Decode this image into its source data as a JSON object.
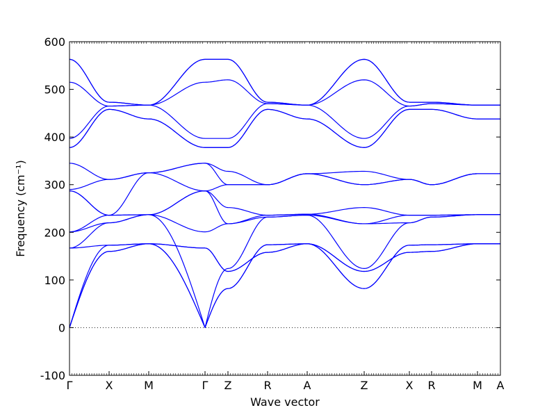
{
  "chart_data": {
    "type": "line",
    "title": "",
    "xlabel": "Wave vector",
    "ylabel": "Frequency (cm⁻¹)",
    "ylim": [
      -100,
      600
    ],
    "yticks": [
      -100,
      0,
      100,
      200,
      300,
      400,
      500,
      600
    ],
    "grid": false,
    "zero_line": "dotted",
    "band_color": "#0000ff",
    "x_points": [
      "Γ",
      "X",
      "M",
      "Γ",
      "Z",
      "R",
      "A",
      "Z",
      "X",
      "R",
      "M",
      "A"
    ],
    "segments": [
      "Γ-X",
      "X-M",
      "M-Γ",
      "Γ-Z",
      "Z-R",
      "R-A",
      "A-Z",
      "Z-X",
      "X-R",
      "R-M",
      "M-A"
    ],
    "series": [
      {
        "values": [
          0,
          160,
          176,
          167,
          118,
          158,
          176,
          118,
          158,
          160,
          176,
          176
        ]
      },
      {
        "values": [
          0,
          160,
          176,
          167,
          118,
          158,
          176,
          118,
          158,
          160,
          176,
          176
        ]
      },
      {
        "values": [
          0,
          173,
          176,
          0,
          82,
          174,
          176,
          82,
          173,
          174,
          176,
          176
        ]
      },
      {
        "values": [
          167,
          173,
          176,
          0,
          82,
          174,
          176,
          82,
          173,
          174,
          176,
          176
        ]
      },
      {
        "values": [
          167,
          220,
          237,
          0,
          124,
          232,
          236,
          124,
          220,
          232,
          237,
          237
        ]
      },
      {
        "values": [
          201,
          220,
          237,
          201,
          218,
          232,
          236,
          218,
          220,
          232,
          237,
          237
        ]
      },
      {
        "values": [
          201,
          236,
          237,
          287,
          218,
          236,
          238,
          218,
          236,
          236,
          237,
          237
        ]
      },
      {
        "values": [
          287,
          236,
          237,
          287,
          252,
          236,
          238,
          252,
          236,
          236,
          237,
          237
        ]
      },
      {
        "values": [
          287,
          236,
          325,
          287,
          300,
          300,
          323,
          300,
          311,
          300,
          323,
          323
        ]
      },
      {
        "values": [
          290,
          311,
          325,
          345,
          300,
          300,
          323,
          300,
          311,
          300,
          323,
          323
        ]
      },
      {
        "values": [
          345,
          311,
          325,
          345,
          328,
          300,
          323,
          328,
          311,
          300,
          323,
          323
        ]
      },
      {
        "values": [
          378,
          458,
          438,
          378,
          378,
          458,
          438,
          378,
          458,
          458,
          438,
          438
        ]
      },
      {
        "values": [
          378,
          458,
          438,
          378,
          378,
          458,
          438,
          378,
          458,
          458,
          438,
          438
        ]
      },
      {
        "values": [
          397,
          465,
          467,
          397,
          397,
          470,
          467,
          397,
          465,
          470,
          467,
          467
        ]
      },
      {
        "values": [
          515,
          465,
          467,
          515,
          520,
          470,
          467,
          520,
          465,
          470,
          467,
          467
        ]
      },
      {
        "values": [
          563,
          473,
          467,
          563,
          563,
          473,
          467,
          563,
          473,
          473,
          467,
          467
        ]
      },
      {
        "values": [
          563,
          473,
          467,
          563,
          563,
          473,
          467,
          563,
          473,
          473,
          467,
          467
        ]
      }
    ]
  }
}
